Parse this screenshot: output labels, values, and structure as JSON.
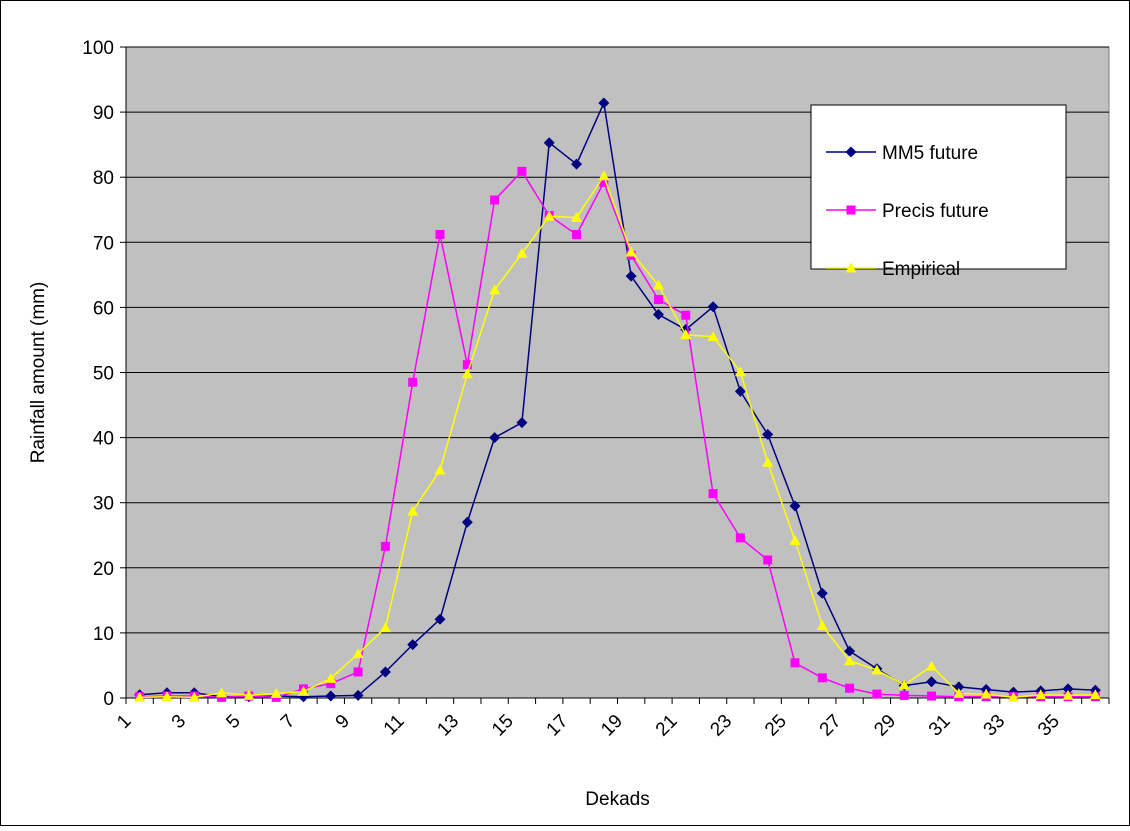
{
  "chart_data": {
    "type": "line",
    "title": "",
    "xlabel": "Dekads",
    "ylabel": "Rainfall amount (mm)",
    "x": [
      1,
      2,
      3,
      4,
      5,
      6,
      7,
      8,
      9,
      10,
      11,
      12,
      13,
      14,
      15,
      16,
      17,
      18,
      19,
      20,
      21,
      22,
      23,
      24,
      25,
      26,
      27,
      28,
      29,
      30,
      31,
      32,
      33,
      34,
      35,
      36
    ],
    "xticks": [
      1,
      3,
      5,
      7,
      9,
      11,
      13,
      15,
      17,
      19,
      21,
      23,
      25,
      27,
      29,
      31,
      33,
      35
    ],
    "ylim": [
      0,
      100
    ],
    "yticks": [
      0,
      10,
      20,
      30,
      40,
      50,
      60,
      70,
      80,
      90,
      100
    ],
    "grid": "horizontal",
    "legend_position": "top-right",
    "plot_background": "#c0c0c0",
    "series": [
      {
        "name": "MM5 future",
        "color": "#000080",
        "marker": "diamond",
        "values": [
          0.5,
          0.8,
          0.8,
          0.2,
          0.2,
          0.3,
          0.2,
          0.3,
          0.4,
          4.0,
          8.2,
          12.1,
          27.0,
          40.0,
          42.3,
          85.3,
          82.0,
          91.4,
          64.8,
          58.9,
          56.6,
          60.1,
          47.1,
          40.5,
          29.5,
          16.1,
          7.2,
          4.5,
          1.9,
          2.5,
          1.7,
          1.3,
          0.9,
          1.1,
          1.4,
          1.2
        ]
      },
      {
        "name": "Precis future",
        "color": "#ff00ff",
        "marker": "square",
        "values": [
          0.2,
          0.3,
          0.3,
          0.1,
          0.3,
          0.1,
          1.4,
          2.2,
          4.0,
          23.3,
          48.5,
          71.2,
          51.2,
          76.5,
          80.9,
          74.1,
          71.2,
          79.2,
          68.0,
          61.2,
          58.8,
          31.4,
          24.6,
          21.2,
          5.4,
          3.1,
          1.5,
          0.6,
          0.4,
          0.3,
          0.2,
          0.2,
          0.2,
          0.2,
          0.2,
          0.2
        ]
      },
      {
        "name": "Empirical",
        "color": "#ffff00",
        "marker": "triangle",
        "values": [
          0.1,
          0.2,
          0.1,
          0.8,
          0.4,
          0.7,
          1.0,
          3.0,
          6.8,
          10.8,
          28.7,
          35.0,
          49.8,
          62.7,
          68.3,
          74.0,
          73.8,
          80.2,
          68.5,
          63.4,
          55.8,
          55.5,
          50.1,
          36.2,
          24.2,
          11.1,
          5.7,
          4.3,
          2.0,
          4.9,
          0.7,
          0.6,
          0.1,
          0.5,
          0.4,
          0.5
        ]
      }
    ]
  }
}
